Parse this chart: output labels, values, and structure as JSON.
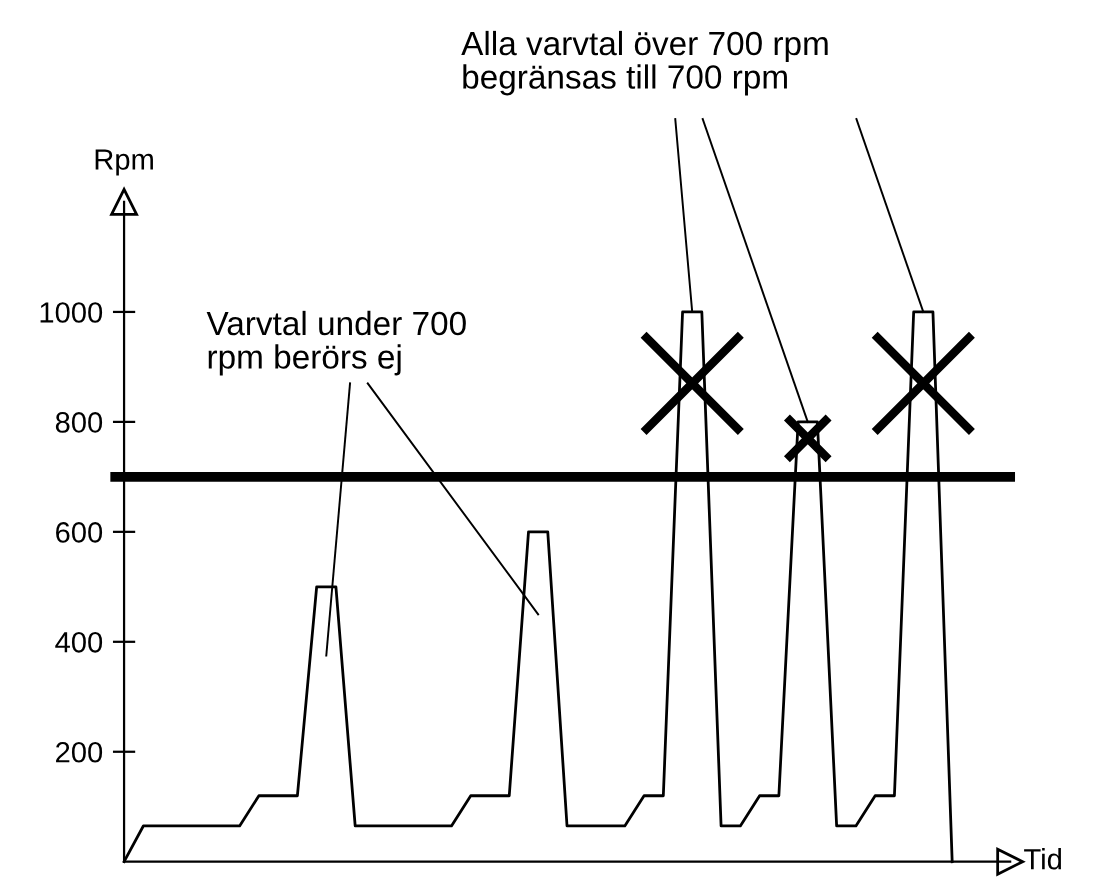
{
  "chart_data": {
    "type": "line",
    "xlabel": "Tid",
    "ylabel": "Rpm",
    "categories": [
      null,
      null,
      null,
      null,
      null,
      null,
      null,
      null,
      null,
      null,
      null,
      null,
      null,
      null,
      null,
      null,
      null,
      null,
      null,
      null,
      null,
      null,
      null,
      null,
      null,
      null,
      null,
      null,
      null,
      null,
      null,
      null,
      null,
      null,
      null,
      null,
      null,
      null,
      null,
      null,
      null,
      null,
      null,
      null
    ],
    "values": [
      0,
      65,
      65,
      65,
      65,
      65,
      65,
      120,
      120,
      120,
      500,
      500,
      65,
      65,
      65,
      65,
      65,
      65,
      120,
      120,
      120,
      600,
      600,
      65,
      65,
      65,
      65,
      120,
      120,
      1000,
      1000,
      65,
      65,
      120,
      120,
      800,
      800,
      65,
      65,
      120,
      120,
      1000,
      1000,
      0
    ],
    "color": "#000000",
    "ylim": [
      0,
      1200
    ],
    "yticks": [
      200,
      400,
      600,
      800,
      1000
    ],
    "tick_labels": "y",
    "grid": false,
    "ref_lines": [
      {
        "axis": "y",
        "value": 700,
        "color": "#000000"
      }
    ],
    "annotations": [
      "Varvtal under 700\nrpm berörs ej",
      "Alla varvtal över 700 rpm\nbegränsas till 700 rpm"
    ]
  }
}
